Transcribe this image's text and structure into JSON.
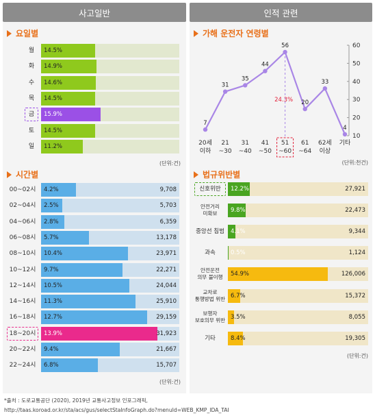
{
  "panels": {
    "left_header": "사고일반",
    "right_header": "인적 관련"
  },
  "colors": {
    "day_bar": "#8fc91d",
    "day_track": "#e2e8cf",
    "day_highlight": "#9b50e6",
    "time_bar": "#5aaee6",
    "time_track": "#cfe0ee",
    "time_highlight": "#ea2a8c",
    "age_line": "#a986e6",
    "age_highlight": "#e2213a",
    "law_green": "#4aa521",
    "law_yellow": "#f6ba0f",
    "law_track": "#f0e6c8",
    "title_accent": "#e8701a"
  },
  "chart_data": [
    {
      "type": "bar",
      "title": "요일별",
      "categories": [
        "월",
        "화",
        "수",
        "목",
        "금",
        "토",
        "일"
      ],
      "values": [
        14.5,
        14.9,
        14.6,
        14.5,
        15.9,
        14.5,
        11.2
      ],
      "value_labels": [
        "14.5%",
        "14.9%",
        "14.6%",
        "14.5%",
        "15.9%",
        "14.5%",
        "11.2%"
      ],
      "highlight_index": 4,
      "unit": "(단위:건)"
    },
    {
      "type": "bar",
      "title": "시간별",
      "categories": [
        "00~02시",
        "02~04시",
        "04~06시",
        "06~08시",
        "08~10시",
        "10~12시",
        "12~14시",
        "14~16시",
        "16~18시",
        "18~20시",
        "20~22시",
        "22~24시"
      ],
      "values": [
        4.2,
        2.5,
        2.8,
        5.7,
        10.4,
        9.7,
        10.5,
        11.3,
        12.7,
        13.9,
        9.4,
        6.8
      ],
      "value_labels": [
        "4.2%",
        "2.5%",
        "2.8%",
        "5.7%",
        "10.4%",
        "9.7%",
        "10.5%",
        "11.3%",
        "12.7%",
        "13.9%",
        "9.4%",
        "6.8%"
      ],
      "counts": [
        "9,708",
        "5,703",
        "6,359",
        "13,178",
        "23,971",
        "22,271",
        "24,044",
        "25,910",
        "29,159",
        "31,923",
        "21,667",
        "15,707"
      ],
      "highlight_index": 9,
      "unit": "(단위:건)"
    },
    {
      "type": "line",
      "title": "가해 운전자 연령별",
      "categories": [
        [
          "20세",
          "이하"
        ],
        [
          "21",
          "~30"
        ],
        [
          "31",
          "~40"
        ],
        [
          "41",
          "~50"
        ],
        [
          "51",
          "~60"
        ],
        [
          "61",
          "~64"
        ],
        [
          "62세",
          "이상"
        ],
        [
          "기타",
          ""
        ]
      ],
      "values": [
        7,
        31,
        35,
        44,
        56,
        20,
        33,
        4
      ],
      "value_labels": [
        "7",
        "31",
        "35",
        "44",
        "56",
        "20",
        "33",
        "4"
      ],
      "highlight_index": 4,
      "highlight_label": "24.3%",
      "yticks": [
        "10",
        "20",
        "30",
        "40",
        "50",
        "60"
      ],
      "ylim": [
        10,
        60
      ],
      "unit": "(단위:천건)"
    },
    {
      "type": "bar",
      "title": "법규위반별",
      "categories": [
        [
          "신호위반"
        ],
        [
          "안전거리",
          "미확보"
        ],
        [
          "중앙선 침범"
        ],
        [
          "과속"
        ],
        [
          "안전운전",
          "의무 불이행"
        ],
        [
          "교차로",
          "통행방법 위반"
        ],
        [
          "보행자",
          "보호의무 위반"
        ],
        [
          "기타"
        ]
      ],
      "values": [
        12.2,
        9.8,
        4.1,
        0.5,
        54.9,
        6.7,
        3.5,
        8.4
      ],
      "value_labels": [
        "12.2%",
        "9.8%",
        "4.1%",
        "0.5%",
        "54.9%",
        "6.7%",
        "3.5%",
        "8.4%"
      ],
      "counts": [
        "27,921",
        "22,473",
        "9,344",
        "1,124",
        "126,006",
        "15,372",
        "8,055",
        "19,305"
      ],
      "bar_colors": [
        "green",
        "green",
        "green",
        "green",
        "yellow",
        "yellow",
        "yellow",
        "yellow"
      ],
      "highlight_index": 0,
      "unit": "(단위:건)"
    }
  ],
  "footer": {
    "line1": "*출처 : 도로교통공단 (2020), 2019년 교통사고정보 인포그래픽,",
    "line2": "http://taas.koroad.or.kr/sta/acs/gus/selectStaInfoGraph.do?menuId=WEB_KMP_IDA_TAI"
  }
}
